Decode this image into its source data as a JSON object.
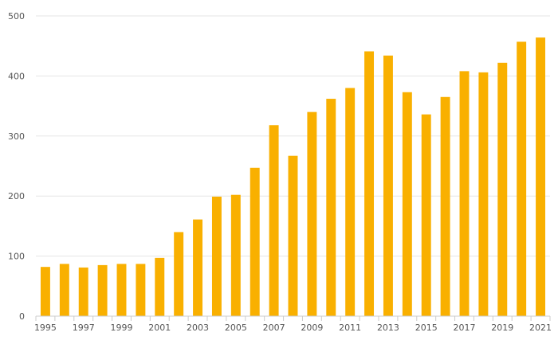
{
  "chart_data": {
    "type": "bar",
    "categories": [
      "1995",
      "1996",
      "1997",
      "1998",
      "1999",
      "2000",
      "2001",
      "2002",
      "2003",
      "2004",
      "2005",
      "2006",
      "2007",
      "2008",
      "2009",
      "2010",
      "2011",
      "2012",
      "2013",
      "2014",
      "2015",
      "2016",
      "2017",
      "2018",
      "2019",
      "2020",
      "2021"
    ],
    "values": [
      82,
      87,
      81,
      85,
      87,
      87,
      97,
      140,
      161,
      199,
      202,
      247,
      318,
      267,
      340,
      362,
      380,
      441,
      434,
      373,
      336,
      365,
      408,
      406,
      422,
      457,
      464
    ],
    "x_tick_labels": [
      "1995",
      "1997",
      "1999",
      "2001",
      "2003",
      "2005",
      "2007",
      "2009",
      "2011",
      "2013",
      "2015",
      "2017",
      "2019",
      "2021"
    ],
    "y_ticks": [
      0,
      100,
      200,
      300,
      400,
      500
    ],
    "ylim": [
      0,
      500
    ],
    "grid": true,
    "bar_color": "#F9B000",
    "grid_color": "#E6E6E6",
    "axis_color": "#CCCCCC",
    "text_color": "#555555"
  }
}
